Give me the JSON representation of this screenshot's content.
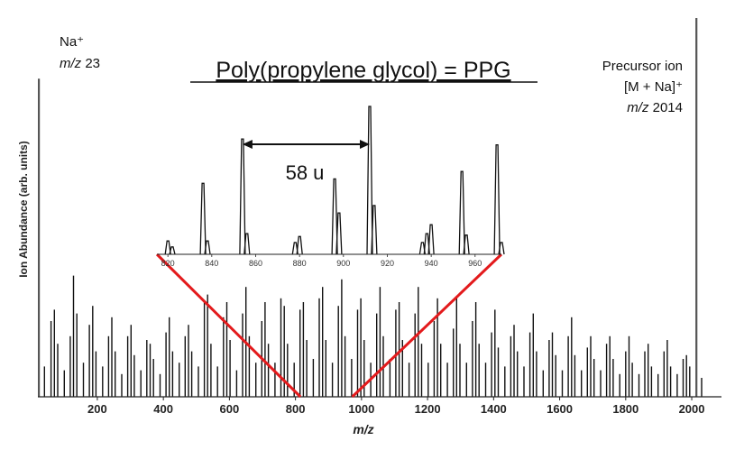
{
  "chart_data": {
    "type": "bar",
    "title": "Poly(propylene glycol) = PPG",
    "xlabel": "m/z",
    "ylabel": "Ion Abundance (arb. units)",
    "xlim": [
      20,
      2090
    ],
    "ylim": [
      0,
      100
    ],
    "x_ticks": [
      "200",
      "400",
      "600",
      "800",
      "1000",
      "1200",
      "1400",
      "1600",
      "1800",
      "2000"
    ],
    "series": [
      {
        "values": [
          {
            "x": 23,
            "y": 84
          },
          {
            "x": 40,
            "y": 8
          },
          {
            "x": 60,
            "y": 20
          },
          {
            "x": 70,
            "y": 23
          },
          {
            "x": 80,
            "y": 14
          },
          {
            "x": 100,
            "y": 7
          },
          {
            "x": 118,
            "y": 16
          },
          {
            "x": 128,
            "y": 32
          },
          {
            "x": 138,
            "y": 22
          },
          {
            "x": 158,
            "y": 9
          },
          {
            "x": 176,
            "y": 19
          },
          {
            "x": 186,
            "y": 24
          },
          {
            "x": 196,
            "y": 12
          },
          {
            "x": 216,
            "y": 8
          },
          {
            "x": 234,
            "y": 16
          },
          {
            "x": 244,
            "y": 21
          },
          {
            "x": 254,
            "y": 12
          },
          {
            "x": 274,
            "y": 6
          },
          {
            "x": 292,
            "y": 16
          },
          {
            "x": 302,
            "y": 19
          },
          {
            "x": 312,
            "y": 11
          },
          {
            "x": 332,
            "y": 7
          },
          {
            "x": 350,
            "y": 15
          },
          {
            "x": 360,
            "y": 14
          },
          {
            "x": 370,
            "y": 10
          },
          {
            "x": 390,
            "y": 6
          },
          {
            "x": 408,
            "y": 17
          },
          {
            "x": 418,
            "y": 21
          },
          {
            "x": 428,
            "y": 12
          },
          {
            "x": 448,
            "y": 9
          },
          {
            "x": 466,
            "y": 16
          },
          {
            "x": 476,
            "y": 19
          },
          {
            "x": 486,
            "y": 12
          },
          {
            "x": 506,
            "y": 8
          },
          {
            "x": 524,
            "y": 25
          },
          {
            "x": 534,
            "y": 27
          },
          {
            "x": 544,
            "y": 14
          },
          {
            "x": 564,
            "y": 8
          },
          {
            "x": 582,
            "y": 21
          },
          {
            "x": 592,
            "y": 25
          },
          {
            "x": 602,
            "y": 15
          },
          {
            "x": 622,
            "y": 7
          },
          {
            "x": 640,
            "y": 22
          },
          {
            "x": 650,
            "y": 29
          },
          {
            "x": 660,
            "y": 16
          },
          {
            "x": 680,
            "y": 9
          },
          {
            "x": 698,
            "y": 20
          },
          {
            "x": 708,
            "y": 25
          },
          {
            "x": 718,
            "y": 14
          },
          {
            "x": 738,
            "y": 9
          },
          {
            "x": 756,
            "y": 26
          },
          {
            "x": 766,
            "y": 24
          },
          {
            "x": 776,
            "y": 14
          },
          {
            "x": 796,
            "y": 9
          },
          {
            "x": 814,
            "y": 23
          },
          {
            "x": 824,
            "y": 25
          },
          {
            "x": 834,
            "y": 15
          },
          {
            "x": 854,
            "y": 10
          },
          {
            "x": 872,
            "y": 26
          },
          {
            "x": 882,
            "y": 29
          },
          {
            "x": 892,
            "y": 15
          },
          {
            "x": 912,
            "y": 9
          },
          {
            "x": 930,
            "y": 24
          },
          {
            "x": 940,
            "y": 31
          },
          {
            "x": 950,
            "y": 16
          },
          {
            "x": 970,
            "y": 10
          },
          {
            "x": 988,
            "y": 23
          },
          {
            "x": 998,
            "y": 26
          },
          {
            "x": 1008,
            "y": 15
          },
          {
            "x": 1028,
            "y": 9
          },
          {
            "x": 1046,
            "y": 22
          },
          {
            "x": 1056,
            "y": 29
          },
          {
            "x": 1066,
            "y": 16
          },
          {
            "x": 1086,
            "y": 10
          },
          {
            "x": 1104,
            "y": 23
          },
          {
            "x": 1114,
            "y": 25
          },
          {
            "x": 1124,
            "y": 15
          },
          {
            "x": 1144,
            "y": 9
          },
          {
            "x": 1162,
            "y": 22
          },
          {
            "x": 1172,
            "y": 29
          },
          {
            "x": 1182,
            "y": 14
          },
          {
            "x": 1202,
            "y": 9
          },
          {
            "x": 1220,
            "y": 20
          },
          {
            "x": 1230,
            "y": 26
          },
          {
            "x": 1240,
            "y": 14
          },
          {
            "x": 1260,
            "y": 9
          },
          {
            "x": 1278,
            "y": 18
          },
          {
            "x": 1288,
            "y": 26
          },
          {
            "x": 1298,
            "y": 14
          },
          {
            "x": 1318,
            "y": 9
          },
          {
            "x": 1336,
            "y": 20
          },
          {
            "x": 1346,
            "y": 25
          },
          {
            "x": 1356,
            "y": 14
          },
          {
            "x": 1376,
            "y": 9
          },
          {
            "x": 1394,
            "y": 17
          },
          {
            "x": 1404,
            "y": 23
          },
          {
            "x": 1414,
            "y": 13
          },
          {
            "x": 1434,
            "y": 8
          },
          {
            "x": 1452,
            "y": 16
          },
          {
            "x": 1462,
            "y": 19
          },
          {
            "x": 1472,
            "y": 12
          },
          {
            "x": 1492,
            "y": 8
          },
          {
            "x": 1510,
            "y": 17
          },
          {
            "x": 1520,
            "y": 22
          },
          {
            "x": 1530,
            "y": 12
          },
          {
            "x": 1550,
            "y": 7
          },
          {
            "x": 1568,
            "y": 15
          },
          {
            "x": 1578,
            "y": 17
          },
          {
            "x": 1588,
            "y": 11
          },
          {
            "x": 1608,
            "y": 7
          },
          {
            "x": 1626,
            "y": 16
          },
          {
            "x": 1636,
            "y": 21
          },
          {
            "x": 1646,
            "y": 11
          },
          {
            "x": 1666,
            "y": 7
          },
          {
            "x": 1684,
            "y": 13
          },
          {
            "x": 1694,
            "y": 16
          },
          {
            "x": 1704,
            "y": 10
          },
          {
            "x": 1724,
            "y": 7
          },
          {
            "x": 1742,
            "y": 14
          },
          {
            "x": 1752,
            "y": 16
          },
          {
            "x": 1762,
            "y": 10
          },
          {
            "x": 1782,
            "y": 6
          },
          {
            "x": 1800,
            "y": 12
          },
          {
            "x": 1810,
            "y": 16
          },
          {
            "x": 1820,
            "y": 9
          },
          {
            "x": 1840,
            "y": 6
          },
          {
            "x": 1858,
            "y": 12
          },
          {
            "x": 1868,
            "y": 14
          },
          {
            "x": 1878,
            "y": 8
          },
          {
            "x": 1898,
            "y": 6
          },
          {
            "x": 1916,
            "y": 12
          },
          {
            "x": 1926,
            "y": 15
          },
          {
            "x": 1936,
            "y": 8
          },
          {
            "x": 1956,
            "y": 6
          },
          {
            "x": 1974,
            "y": 10
          },
          {
            "x": 1984,
            "y": 11
          },
          {
            "x": 1994,
            "y": 8
          },
          {
            "x": 2014,
            "y": 100
          },
          {
            "x": 2030,
            "y": 5
          }
        ]
      }
    ],
    "annotations": {
      "na_label": "Na⁺",
      "na_mz_italic": "m/z",
      "na_mz_value": " 23",
      "precursor_line1": "Precursor ion",
      "precursor_line2": "[M + Na]⁺",
      "precursor_mz_italic": "m/z",
      "precursor_mz_value": " 2014",
      "spacing_label": "58 u"
    },
    "inset": {
      "xlim": [
        815,
        972
      ],
      "x_ticks": [
        "820",
        "840",
        "860",
        "880",
        "900",
        "920",
        "940",
        "960"
      ],
      "ylim": [
        0,
        100
      ],
      "peaks": [
        {
          "x": 820,
          "y": 9
        },
        {
          "x": 822,
          "y": 5
        },
        {
          "x": 836,
          "y": 48
        },
        {
          "x": 838,
          "y": 9
        },
        {
          "x": 854,
          "y": 78
        },
        {
          "x": 856,
          "y": 14
        },
        {
          "x": 878,
          "y": 8
        },
        {
          "x": 880,
          "y": 12
        },
        {
          "x": 896,
          "y": 51
        },
        {
          "x": 898,
          "y": 28
        },
        {
          "x": 912,
          "y": 100
        },
        {
          "x": 914,
          "y": 33
        },
        {
          "x": 936,
          "y": 8
        },
        {
          "x": 938,
          "y": 14
        },
        {
          "x": 940,
          "y": 20
        },
        {
          "x": 954,
          "y": 56
        },
        {
          "x": 956,
          "y": 13
        },
        {
          "x": 970,
          "y": 74
        },
        {
          "x": 972,
          "y": 8
        }
      ],
      "arrow_from": 854,
      "arrow_to": 912
    },
    "colors": {
      "bars": "#111111",
      "zoom_lines": "#e31a1c",
      "axis": "#222222"
    },
    "grid": false
  }
}
